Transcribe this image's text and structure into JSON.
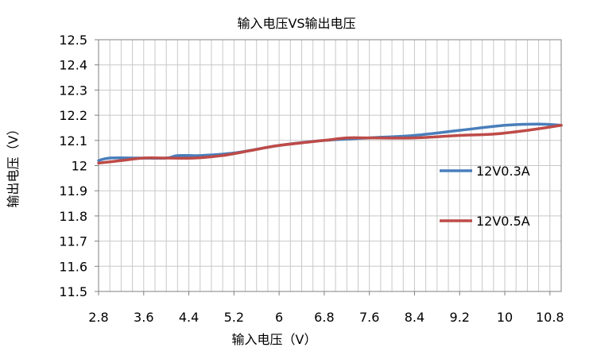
{
  "chart_data": {
    "type": "line",
    "title": "输入电压VS输出电压",
    "xlabel": "输入电压（V）",
    "ylabel": "输出电压（V）",
    "xlim": [
      2.8,
      11.0
    ],
    "ylim": [
      11.5,
      12.5
    ],
    "x_ticks": [
      "2.8",
      "3.6",
      "4.4",
      "5.2",
      "6",
      "6.8",
      "7.6",
      "8.4",
      "9.2",
      "10",
      "10.8"
    ],
    "y_ticks": [
      "11.5",
      "11.6",
      "11.7",
      "11.8",
      "11.9",
      "12",
      "12.1",
      "12.2",
      "12.3",
      "12.4",
      "12.5"
    ],
    "grid": true,
    "legend_position": "right",
    "series": [
      {
        "name": "12V0.3A",
        "color": "#4a7ebb",
        "points": [
          [
            2.8,
            12.02
          ],
          [
            3.0,
            12.03
          ],
          [
            3.5,
            12.03
          ],
          [
            4.0,
            12.03
          ],
          [
            4.2,
            12.04
          ],
          [
            4.6,
            12.04
          ],
          [
            5.2,
            12.05
          ],
          [
            6.0,
            12.08
          ],
          [
            6.8,
            12.1
          ],
          [
            7.6,
            12.11
          ],
          [
            8.4,
            12.12
          ],
          [
            9.2,
            12.14
          ],
          [
            10.0,
            12.16
          ],
          [
            10.6,
            12.165
          ],
          [
            11.0,
            12.16
          ]
        ]
      },
      {
        "name": "12V0.5A",
        "color": "#be4b48",
        "points": [
          [
            2.8,
            12.01
          ],
          [
            3.2,
            12.02
          ],
          [
            3.6,
            12.03
          ],
          [
            4.0,
            12.03
          ],
          [
            4.5,
            12.03
          ],
          [
            5.0,
            12.04
          ],
          [
            5.5,
            12.06
          ],
          [
            6.0,
            12.08
          ],
          [
            6.8,
            12.1
          ],
          [
            7.2,
            12.11
          ],
          [
            7.6,
            12.11
          ],
          [
            8.4,
            12.11
          ],
          [
            9.2,
            12.12
          ],
          [
            9.8,
            12.125
          ],
          [
            10.4,
            12.14
          ],
          [
            11.0,
            12.16
          ]
        ]
      }
    ]
  }
}
